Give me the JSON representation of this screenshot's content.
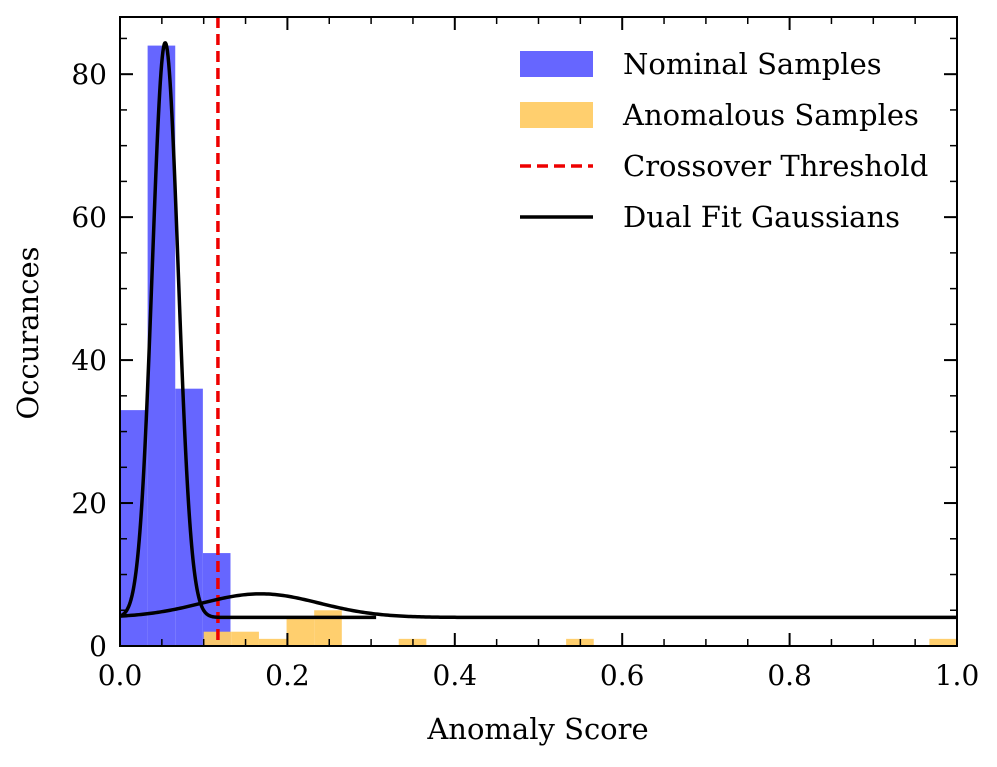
{
  "chart_data": {
    "type": "histogram",
    "xlabel": "Anomaly Score",
    "ylabel": "Occurances",
    "xlim": [
      0,
      1
    ],
    "ylim": [
      0,
      88
    ],
    "legend_position": "top-right",
    "x_ticks": [
      {
        "value": 0.0,
        "label": "0.0"
      },
      {
        "value": 0.2,
        "label": "0.2"
      },
      {
        "value": 0.4,
        "label": "0.4"
      },
      {
        "value": 0.6,
        "label": "0.6"
      },
      {
        "value": 0.8,
        "label": "0.8"
      },
      {
        "value": 1.0,
        "label": "1.0"
      }
    ],
    "y_ticks": [
      {
        "value": 0,
        "label": "0"
      },
      {
        "value": 20,
        "label": "20"
      },
      {
        "value": 40,
        "label": "40"
      },
      {
        "value": 60,
        "label": "60"
      },
      {
        "value": 80,
        "label": "80"
      }
    ],
    "series": [
      {
        "name": "Nominal Samples",
        "kind": "bars",
        "color": "#6666ff",
        "bins": [
          {
            "x0": 0.0,
            "x1": 0.033,
            "count": 33
          },
          {
            "x0": 0.033,
            "x1": 0.066,
            "count": 84
          },
          {
            "x0": 0.066,
            "x1": 0.099,
            "count": 36
          },
          {
            "x0": 0.099,
            "x1": 0.132,
            "count": 13
          }
        ]
      },
      {
        "name": "Anomalous Samples",
        "kind": "bars",
        "color": "#ffcc66",
        "bins": [
          {
            "x0": 0.1,
            "x1": 0.133,
            "count": 2
          },
          {
            "x0": 0.133,
            "x1": 0.166,
            "count": 2
          },
          {
            "x0": 0.166,
            "x1": 0.199,
            "count": 1
          },
          {
            "x0": 0.199,
            "x1": 0.232,
            "count": 4
          },
          {
            "x0": 0.232,
            "x1": 0.265,
            "count": 5
          },
          {
            "x0": 0.333,
            "x1": 0.366,
            "count": 1
          },
          {
            "x0": 0.533,
            "x1": 0.566,
            "count": 1
          },
          {
            "x0": 0.967,
            "x1": 1.0,
            "count": 1
          }
        ]
      },
      {
        "name": "Crossover Threshold",
        "kind": "vline",
        "color": "#ee0000",
        "x": 0.117
      },
      {
        "name": "Dual Fit Gaussians",
        "kind": "curves",
        "color": "#000000",
        "curves": [
          {
            "amplitude": 80.4,
            "mean": 0.054,
            "sigma": 0.0155,
            "baseline": 4.0,
            "x_range": [
              0.0,
              0.306
            ]
          },
          {
            "amplitude": 3.3,
            "mean": 0.168,
            "sigma": 0.07,
            "baseline": 4.0,
            "x_range": [
              0.0,
              1.0
            ]
          }
        ]
      }
    ]
  }
}
